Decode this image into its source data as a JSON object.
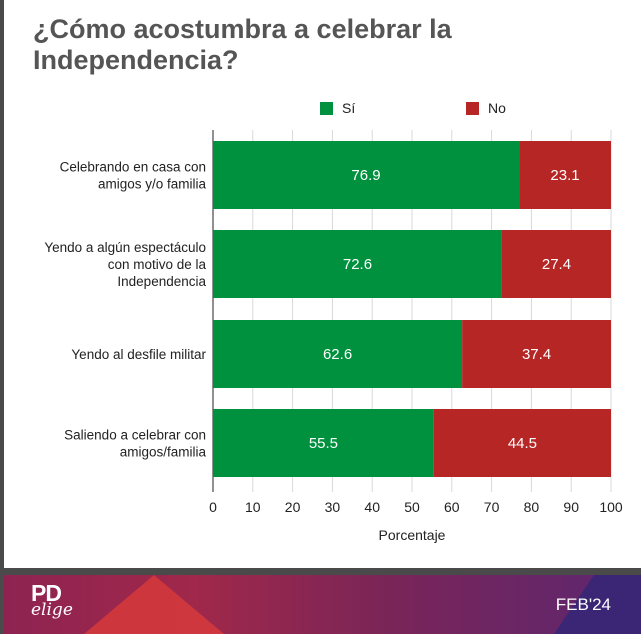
{
  "title": "¿Cómo acostumbra a celebrar la Independencia?",
  "footer": {
    "logo_top": "PD",
    "logo_bottom": "elige",
    "date": "FEB'24"
  },
  "colors": {
    "si": "#00913f",
    "no": "#b62624",
    "grid": "#d9d9d9",
    "axis": "#222222"
  },
  "chart_data": {
    "type": "bar",
    "orientation": "horizontal",
    "stacked": true,
    "title": "¿Cómo acostumbra a celebrar la Independencia?",
    "xlabel": "Porcentaje",
    "ylabel": "",
    "xlim": [
      0,
      100
    ],
    "xticks": [
      0,
      10,
      20,
      30,
      40,
      50,
      60,
      70,
      80,
      90,
      100
    ],
    "grid": true,
    "legend_position": "top",
    "categories": [
      [
        "Celebrando en casa con",
        "amigos y/o familia"
      ],
      [
        "Yendo a algún espectáculo",
        "con motivo de la",
        "Independencia"
      ],
      [
        "Yendo al desfile militar"
      ],
      [
        "Saliendo a celebrar con",
        "amigos/familia"
      ]
    ],
    "series": [
      {
        "name": "Sí",
        "color": "#00913f",
        "values": [
          76.9,
          72.6,
          62.6,
          55.5
        ]
      },
      {
        "name": "No",
        "color": "#b62624",
        "values": [
          23.1,
          27.4,
          37.4,
          44.5
        ]
      }
    ]
  }
}
